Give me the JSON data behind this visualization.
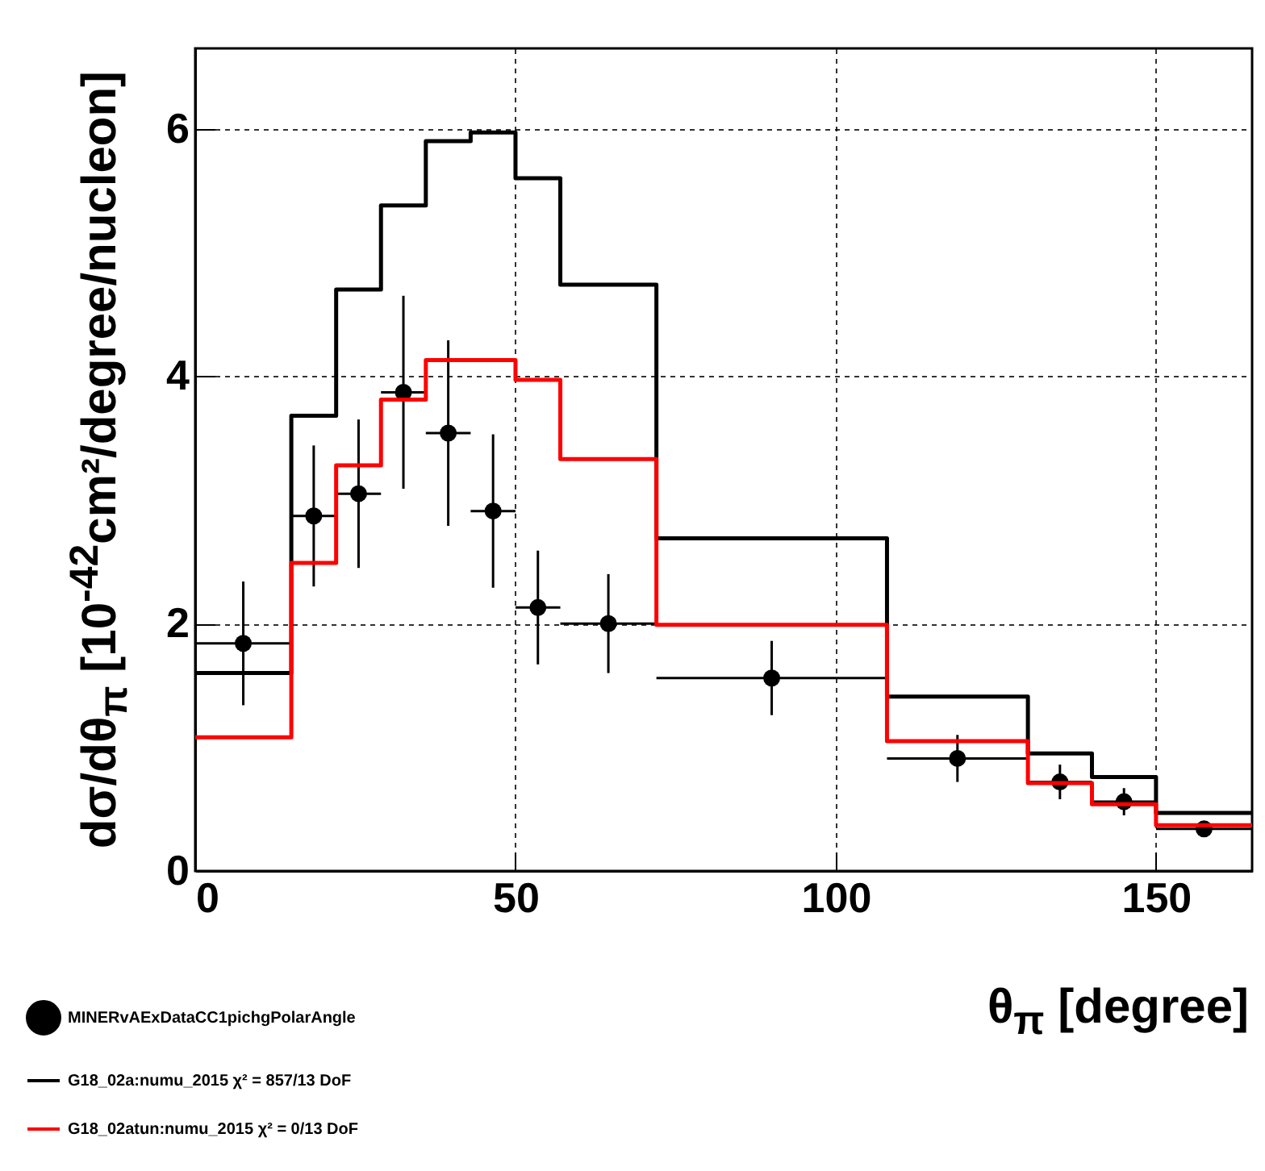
{
  "chart_data": {
    "type": "histogram",
    "xlabel": "θ$_{π}$ [degree]",
    "ylabel": "dσ/dθ$_{π}$ [10$^{-42}$cm²/degree/nucleon]",
    "bins": [
      0,
      15,
      22,
      29,
      36,
      43,
      50,
      57,
      72,
      108,
      130,
      140,
      150,
      165
    ],
    "xlim": [
      0,
      165
    ],
    "xticks": [
      0,
      50,
      100,
      150
    ],
    "ylim": [
      0,
      6.65
    ],
    "yticks": [
      0,
      2,
      4,
      6
    ],
    "grid": true,
    "legend": "bottom",
    "marker": "circle",
    "series": [
      {
        "name": "MINERvAExDataCC1pichgPolarAngle",
        "type": "scatter",
        "color": "#000000",
        "x": [
          7.5,
          18.5,
          25.5,
          32.5,
          39.5,
          46.5,
          53.5,
          64.5,
          90,
          119,
          135,
          145,
          157.5
        ],
        "values": [
          1.84,
          2.87,
          3.05,
          3.87,
          3.54,
          2.91,
          2.13,
          2.0,
          1.56,
          0.91,
          0.72,
          0.56,
          0.34
        ],
        "errors": [
          0.5,
          0.57,
          0.6,
          0.78,
          0.75,
          0.62,
          0.46,
          0.4,
          0.3,
          0.19,
          0.14,
          0.11,
          0.05
        ],
        "xerrors": [
          7.5,
          3.5,
          3.5,
          3.5,
          3.5,
          3.5,
          3.5,
          7.5,
          18,
          11,
          5,
          5,
          7.5
        ]
      },
      {
        "name": "G18_02a:numu_2015 χ² = 857/13 DoF",
        "color": "#000000",
        "values": [
          1.6,
          3.68,
          4.7,
          5.38,
          5.9,
          5.97,
          5.6,
          4.74,
          2.69,
          1.41,
          0.95,
          0.76,
          0.47
        ]
      },
      {
        "name": "G18_02atun:numu_2015 χ² = 0/13 DoF",
        "color": "#ff0000",
        "values": [
          1.08,
          2.49,
          3.28,
          3.81,
          4.13,
          4.13,
          3.97,
          3.33,
          1.99,
          1.05,
          0.71,
          0.54,
          0.37
        ]
      }
    ]
  }
}
